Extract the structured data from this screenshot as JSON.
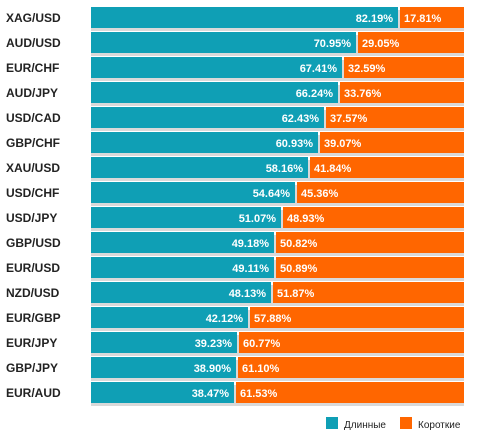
{
  "chart_data": {
    "type": "bar",
    "stacked": true,
    "orientation": "horizontal",
    "xlim": [
      0,
      100
    ],
    "categories": [
      "XAG/USD",
      "AUD/USD",
      "EUR/CHF",
      "AUD/JPY",
      "USD/CAD",
      "GBP/CHF",
      "XAU/USD",
      "USD/CHF",
      "USD/JPY",
      "GBP/USD",
      "EUR/USD",
      "NZD/USD",
      "EUR/GBP",
      "EUR/JPY",
      "GBP/JPY",
      "EUR/AUD"
    ],
    "series": [
      {
        "name": "Длинные",
        "color": "#0f9fb5",
        "values": [
          82.19,
          70.95,
          67.41,
          66.24,
          62.43,
          60.93,
          58.16,
          54.64,
          51.07,
          49.18,
          49.11,
          48.13,
          42.12,
          39.23,
          38.9,
          38.47
        ],
        "labels": [
          "82.19%",
          "70.95%",
          "67.41%",
          "66.24%",
          "62.43%",
          "60.93%",
          "58.16%",
          "54.64%",
          "51.07%",
          "49.18%",
          "49.11%",
          "48.13%",
          "42.12%",
          "39.23%",
          "38.90%",
          "38.47%"
        ]
      },
      {
        "name": "Короткие",
        "color": "#ff6600",
        "values": [
          17.81,
          29.05,
          32.59,
          33.76,
          37.57,
          39.07,
          41.84,
          45.36,
          48.93,
          50.82,
          50.89,
          51.87,
          57.88,
          60.77,
          61.1,
          61.53
        ],
        "labels": [
          "17.81%",
          "29.05%",
          "32.59%",
          "33.76%",
          "37.57%",
          "39.07%",
          "41.84%",
          "45.36%",
          "48.93%",
          "50.82%",
          "50.89%",
          "51.87%",
          "57.88%",
          "60.77%",
          "61.10%",
          "61.53%"
        ]
      }
    ],
    "legend_position": "bottom-right",
    "grid": false
  }
}
